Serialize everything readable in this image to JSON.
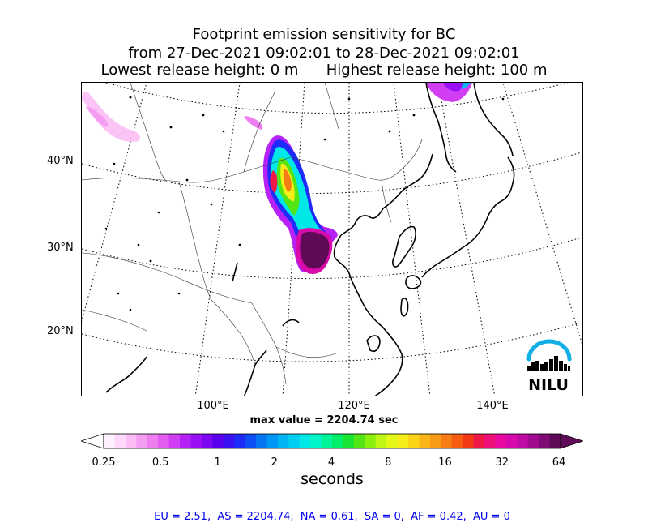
{
  "title": {
    "line1": "Footprint emission sensitivity for BC",
    "line2": "from 27-Dec-2021 09:02:01 to 28-Dec-2021 09:02:01",
    "line3": "Lowest release height: 0 m      Highest release height: 100 m"
  },
  "axes": {
    "lat_labels": [
      "40°N",
      "30°N",
      "20°N"
    ],
    "lon_labels": [
      "100°E",
      "120°E",
      "140°E"
    ]
  },
  "max_value_text": "max value = 2204.74 sec",
  "colorbar": {
    "ticks": [
      "0.25",
      "0.5",
      "1",
      "2",
      "4",
      "8",
      "16",
      "32",
      "64"
    ],
    "label": "seconds",
    "colors": [
      "#fff0ff",
      "#ffd8fb",
      "#fcbcf6",
      "#f59df3",
      "#ee7ef0",
      "#e35cf0",
      "#d03df3",
      "#b622f5",
      "#9a10f5",
      "#7b08f0",
      "#5a02ef",
      "#3a10f5",
      "#1f2bf8",
      "#0d4ff5",
      "#0575f2",
      "#0096f3",
      "#00b4f4",
      "#00cff2",
      "#00e7e8",
      "#00f5c8",
      "#00f59a",
      "#00ee6a",
      "#18e534",
      "#53e614",
      "#8cf00e",
      "#bef512",
      "#e3f816",
      "#f6ec17",
      "#fbd317",
      "#fab616",
      "#f99a15",
      "#f77c14",
      "#f55c12",
      "#f23814",
      "#f01847",
      "#f0107a",
      "#e90aa1",
      "#d80aab",
      "#bf0ba3",
      "#a10b90",
      "#7f0b74",
      "#5e0a56"
    ]
  },
  "logo_text": "NILU",
  "regions_text": "EU = 2.51,  AS = 2204.74,  NA = 0.61,  SA = 0,  AF = 0.42,  AU = 0"
}
